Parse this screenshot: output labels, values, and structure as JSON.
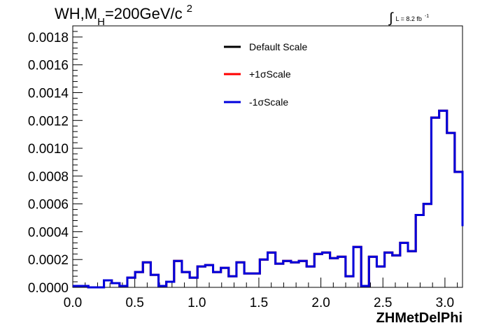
{
  "chart_data": {
    "type": "line",
    "style": "step-histogram",
    "title": {
      "prefix": "WH,M",
      "subscript": "H",
      "main": "=200GeV/c",
      "superscript": "2"
    },
    "luminosity": {
      "integral_symbol": "∫",
      "text": "L = 8.2 fb",
      "superscript": "-1"
    },
    "xlabel": "ZHMetDelPhi",
    "ylabel": "",
    "xlim": [
      0.0,
      3.1416
    ],
    "ylim": [
      0.0,
      0.00188
    ],
    "x_ticks": [
      "0.0",
      "0.5",
      "1.0",
      "1.5",
      "2.0",
      "2.5",
      "3.0"
    ],
    "x_tick_values": [
      0.0,
      0.5,
      1.0,
      1.5,
      2.0,
      2.5,
      3.0
    ],
    "y_ticks": [
      "0.0000",
      "0.0002",
      "0.0004",
      "0.0006",
      "0.0008",
      "0.0010",
      "0.0012",
      "0.0014",
      "0.0016",
      "0.0018"
    ],
    "y_tick_values": [
      0.0,
      0.0002,
      0.0004,
      0.0006,
      0.0008,
      0.001,
      0.0012,
      0.0014,
      0.0016,
      0.0018
    ],
    "grid": false,
    "legend_position": "top-center",
    "bin_edges": [
      0.0,
      0.0628,
      0.1257,
      0.1885,
      0.2513,
      0.3142,
      0.377,
      0.4398,
      0.5027,
      0.5655,
      0.6283,
      0.6912,
      0.754,
      0.8168,
      0.8796,
      0.9425,
      1.0053,
      1.0681,
      1.131,
      1.1938,
      1.2566,
      1.3195,
      1.3823,
      1.4451,
      1.508,
      1.5708,
      1.6336,
      1.6965,
      1.7593,
      1.8221,
      1.885,
      1.9478,
      2.0106,
      2.0735,
      2.1363,
      2.1991,
      2.2619,
      2.3248,
      2.3876,
      2.4504,
      2.5133,
      2.5761,
      2.6389,
      2.7018,
      2.7646,
      2.8274,
      2.8903,
      2.9531,
      3.0159,
      3.0788,
      3.1416
    ],
    "series": [
      {
        "name": "Default Scale",
        "color": "#000000",
        "values": [
          1e-05,
          1e-05,
          0.0,
          0.0,
          5e-05,
          3e-05,
          1e-05,
          7e-05,
          0.00011,
          0.00018,
          9e-05,
          1e-05,
          4e-05,
          0.00019,
          0.00011,
          7e-05,
          0.00015,
          0.00016,
          0.00011,
          0.00014,
          8e-05,
          0.00018,
          0.0001,
          0.0001,
          0.0002,
          0.00025,
          0.00017,
          0.00019,
          0.00018,
          0.00019,
          0.00015,
          0.00024,
          0.00025,
          0.00021,
          0.00022,
          8e-05,
          0.00029,
          1e-05,
          0.00022,
          0.00015,
          0.00025,
          0.00023,
          0.00032,
          0.00026,
          0.00052,
          0.0006,
          0.00122,
          0.00127,
          0.00111,
          0.00083,
          0.00044
        ]
      },
      {
        "name": "+1σScale",
        "color": "#ff0000",
        "values": [
          1e-05,
          1e-05,
          0.0,
          0.0,
          5e-05,
          3e-05,
          1e-05,
          7e-05,
          0.00011,
          0.00018,
          9e-05,
          1e-05,
          4e-05,
          0.00019,
          0.00011,
          7e-05,
          0.00015,
          0.00016,
          0.00011,
          0.00014,
          8e-05,
          0.00018,
          0.0001,
          0.0001,
          0.0002,
          0.00025,
          0.00017,
          0.00019,
          0.00018,
          0.00019,
          0.00015,
          0.00024,
          0.00025,
          0.00021,
          0.00022,
          8e-05,
          0.00029,
          1e-05,
          0.00022,
          0.00015,
          0.00025,
          0.00023,
          0.00032,
          0.00026,
          0.00052,
          0.0006,
          0.00122,
          0.00127,
          0.00111,
          0.00083,
          0.00044
        ]
      },
      {
        "name": "-1σScale",
        "color": "#0000dd",
        "values": [
          1e-05,
          1e-05,
          0.0,
          0.0,
          5e-05,
          3e-05,
          1e-05,
          7e-05,
          0.00011,
          0.00018,
          9e-05,
          1e-05,
          4e-05,
          0.00019,
          0.00011,
          7e-05,
          0.00015,
          0.00016,
          0.00011,
          0.00014,
          8e-05,
          0.00018,
          0.0001,
          0.0001,
          0.0002,
          0.00025,
          0.00017,
          0.00019,
          0.00018,
          0.00019,
          0.00015,
          0.00024,
          0.00025,
          0.00021,
          0.00022,
          8e-05,
          0.00029,
          1e-05,
          0.00022,
          0.00015,
          0.00025,
          0.00023,
          0.00032,
          0.00026,
          0.00052,
          0.0006,
          0.00122,
          0.00127,
          0.00111,
          0.00083,
          0.00044
        ]
      }
    ]
  }
}
